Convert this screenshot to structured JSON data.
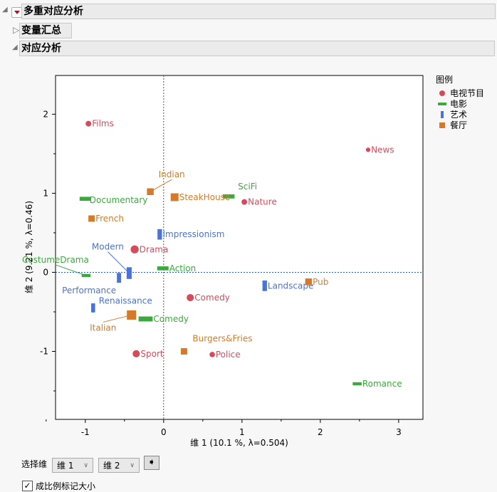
{
  "outline": {
    "main": "多重对应分析",
    "summary": "变量汇总",
    "ca": "对应分析"
  },
  "controls": {
    "select_label": "选择维",
    "dim_x": "维 1",
    "dim_y": "维 2",
    "scale_checkbox": "成比例标记大小",
    "scale_checked": true
  },
  "chart_data": {
    "type": "scatter",
    "xlabel": "维 1  (10.1 %, λ=0.504)",
    "ylabel": "维 2  (9.21 %, λ=0.46)",
    "xlim": [
      -1.38,
      3.31
    ],
    "ylim": [
      -1.86,
      2.49
    ],
    "xticks": [
      "-1",
      "0",
      "1",
      "2",
      "3"
    ],
    "yticks": [
      "-1",
      "0",
      "1",
      "2"
    ],
    "reference_lines": {
      "x": 0,
      "y": 0
    },
    "legend_title": "图例",
    "legend_position": "right",
    "series": [
      {
        "name": "电视节目",
        "color": "#d64a5a",
        "marker": "circle",
        "points": [
          {
            "label": "Films",
            "x": -0.96,
            "y": 1.88,
            "size": 1
          },
          {
            "label": "News",
            "x": 2.61,
            "y": 1.55,
            "size": 0.6
          },
          {
            "label": "Nature",
            "x": 1.03,
            "y": 0.89,
            "size": 1
          },
          {
            "label": "Drama",
            "x": -0.37,
            "y": 0.29,
            "size": 2
          },
          {
            "label": "Comedy",
            "x": 0.34,
            "y": -0.32,
            "size": 1.6
          },
          {
            "label": "Sport",
            "x": -0.35,
            "y": -1.03,
            "size": 1.6
          },
          {
            "label": "Police",
            "x": 0.62,
            "y": -1.04,
            "size": 0.9
          }
        ]
      },
      {
        "name": "电影",
        "color": "#3aaa3c",
        "marker": "hbar",
        "points": [
          {
            "label": "Documentary",
            "x": -1.0,
            "y": 0.93,
            "size": 1.3
          },
          {
            "label": "SciFi",
            "x": 0.83,
            "y": 0.96,
            "size": 1.4
          },
          {
            "label": "Action",
            "x": -0.01,
            "y": 0.05,
            "size": 1.3
          },
          {
            "label": "CostumeDrama",
            "x": -0.99,
            "y": -0.04,
            "size": 0.8
          },
          {
            "label": "Comedy",
            "x": -0.23,
            "y": -0.59,
            "size": 2
          },
          {
            "label": "Romance",
            "x": 2.47,
            "y": -1.41,
            "size": 0.8
          }
        ]
      },
      {
        "name": "艺术",
        "color": "#4a72d8",
        "marker": "vbar",
        "points": [
          {
            "label": "Impressionism",
            "x": -0.05,
            "y": 0.48,
            "size": 1.6
          },
          {
            "label": "Modern",
            "x": -0.44,
            "y": -0.01,
            "size": 2
          },
          {
            "label": "Performance",
            "x": -0.57,
            "y": -0.07,
            "size": 1.4
          },
          {
            "label": "Landscape",
            "x": 1.29,
            "y": -0.17,
            "size": 1.6
          },
          {
            "label": "Renaissance",
            "x": -0.9,
            "y": -0.45,
            "size": 1.2
          }
        ]
      },
      {
        "name": "餐厅",
        "color": "#d47a2a",
        "marker": "square",
        "points": [
          {
            "label": "Indian",
            "x": -0.17,
            "y": 1.02,
            "size": 0.9
          },
          {
            "label": "SteakHouse",
            "x": 0.14,
            "y": 0.95,
            "size": 1.2
          },
          {
            "label": "French",
            "x": -0.92,
            "y": 0.68,
            "size": 0.8
          },
          {
            "label": "Pub",
            "x": 1.85,
            "y": -0.12,
            "size": 0.9
          },
          {
            "label": "Italian",
            "x": -0.41,
            "y": -0.54,
            "size": 1.7
          },
          {
            "label": "Burgers&Fries",
            "x": 0.26,
            "y": -1.0,
            "size": 0.8
          }
        ]
      }
    ]
  }
}
